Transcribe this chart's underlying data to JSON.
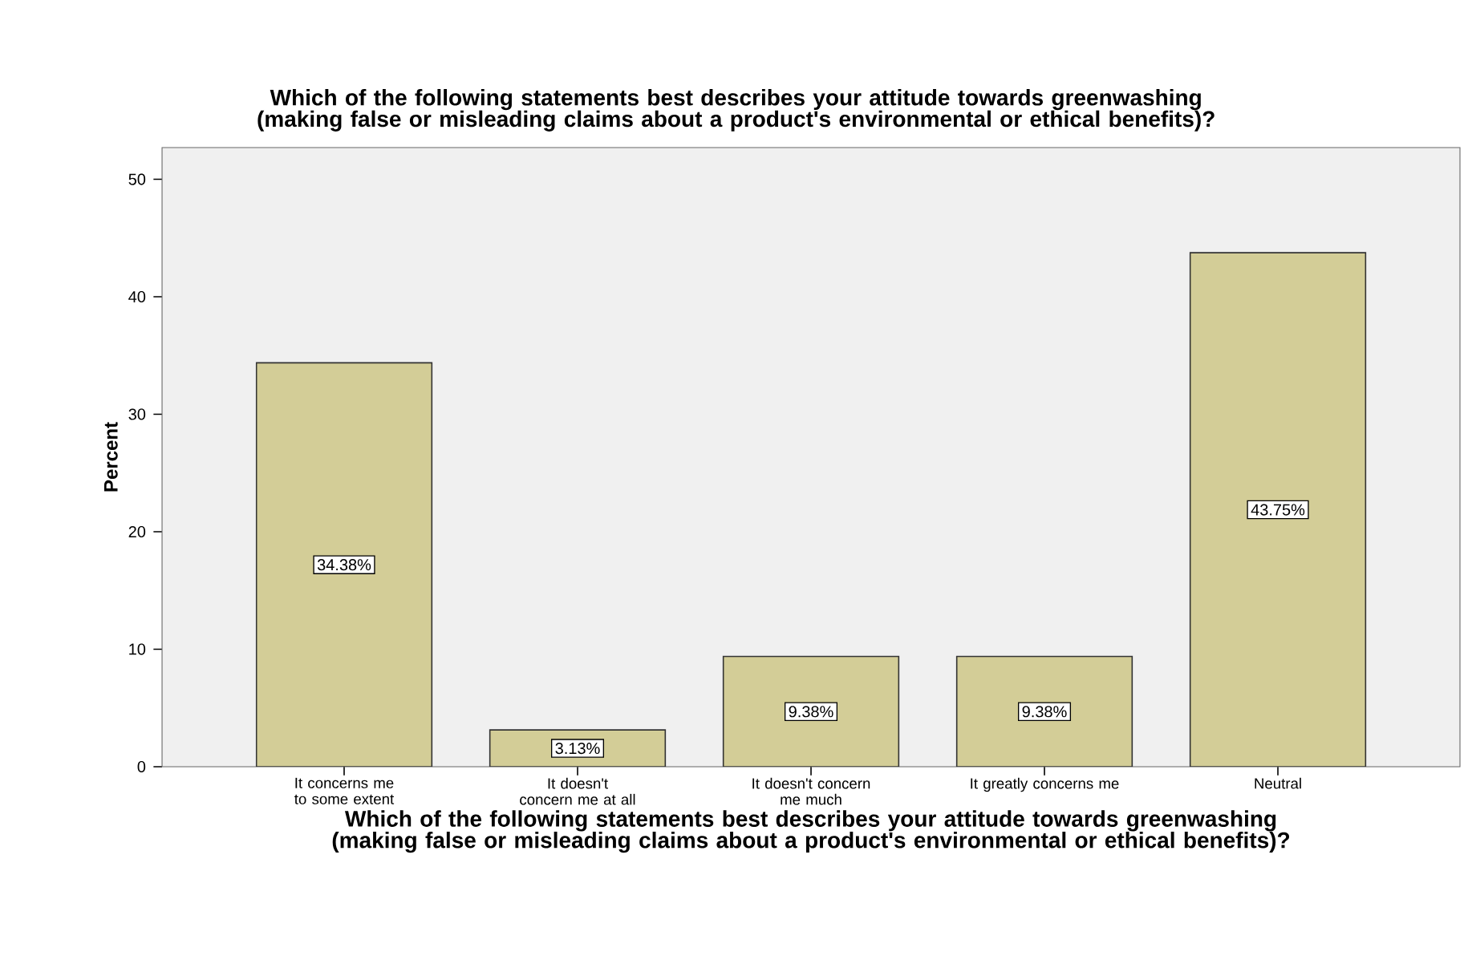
{
  "chart_data": {
    "type": "bar",
    "title": "Which of the following statements best describes your attitude towards greenwashing (making false or misleading claims about a product's environmental or ethical benefits)?",
    "xlabel": "Which of the following statements best describes your attitude towards greenwashing (making false or misleading claims about a product's environmental or ethical benefits)?",
    "ylabel": "Percent",
    "categories": [
      "It concerns me to some extent",
      "It doesn't concern me at all",
      "It doesn't concern me much",
      "It greatly concerns me",
      "Neutral"
    ],
    "values": [
      34.38,
      3.13,
      9.38,
      9.38,
      43.75
    ],
    "value_labels": [
      "34.38%",
      "3.13%",
      "9.38%",
      "9.38%",
      "43.75%"
    ],
    "color": "#d3cd97",
    "ylim": [
      0,
      52.7
    ],
    "yticks": [
      0,
      10,
      20,
      30,
      40,
      50
    ]
  }
}
